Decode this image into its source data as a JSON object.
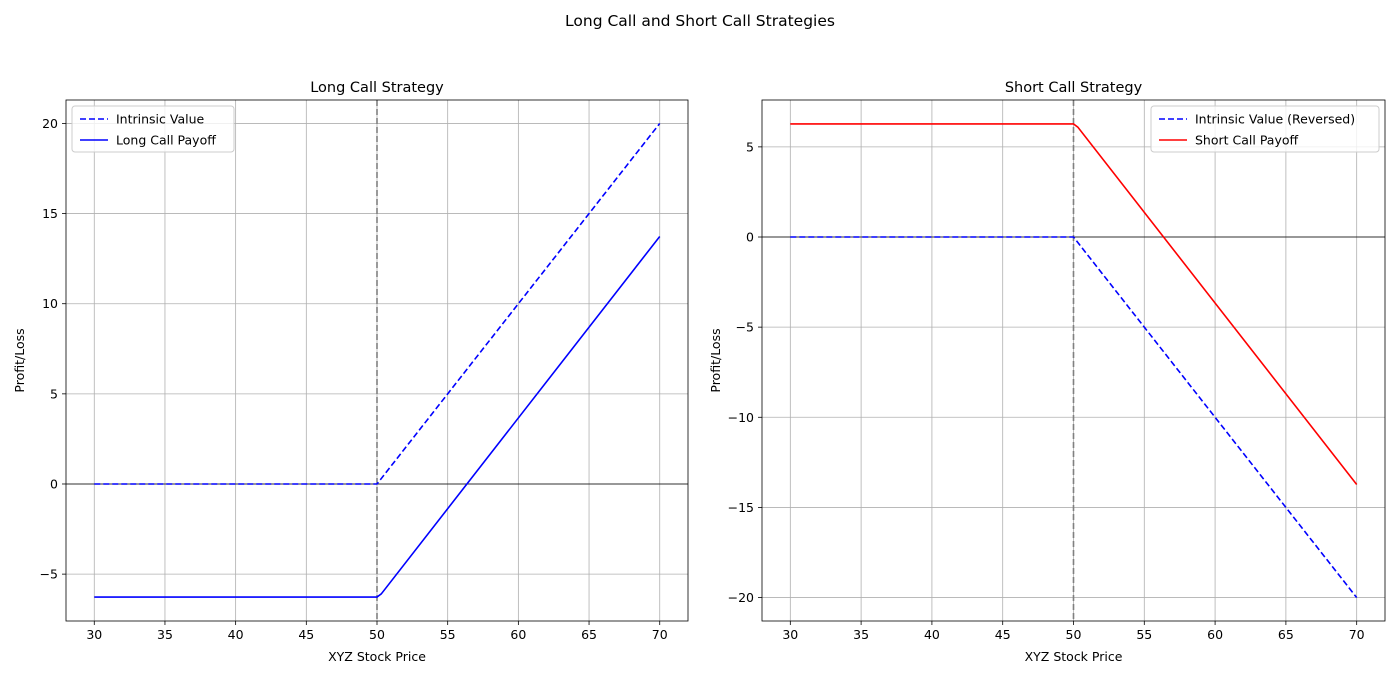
{
  "figure": {
    "suptitle": "Long Call and Short Call Strategies"
  },
  "chart_data": [
    {
      "type": "line",
      "title": "Long Call Strategy",
      "xlabel": "XYZ Stock Price",
      "ylabel": "Profit/Loss",
      "xlim": [
        28,
        72
      ],
      "ylim": [
        -7.6,
        21.3
      ],
      "xticks": [
        30,
        35,
        40,
        45,
        50,
        55,
        60,
        65,
        70
      ],
      "yticks": [
        -5,
        0,
        5,
        10,
        15,
        20
      ],
      "grid": true,
      "legend_position": "top-left",
      "strike_line": 50,
      "zero_line": 0,
      "series": [
        {
          "name": "Intrinsic Value",
          "color": "#0000ff",
          "style": "dashed",
          "x": [
            30,
            50,
            70
          ],
          "y": [
            0,
            0,
            20
          ]
        },
        {
          "name": "Long Call Payoff",
          "color": "#0000ff",
          "style": "solid",
          "x": [
            30,
            50,
            50.3,
            70
          ],
          "y": [
            -6.27,
            -6.27,
            -6.1,
            13.73
          ]
        }
      ]
    },
    {
      "type": "line",
      "title": "Short Call Strategy",
      "xlabel": "XYZ Stock Price",
      "ylabel": "Profit/Loss",
      "xlim": [
        28,
        72
      ],
      "ylim": [
        -21.3,
        7.6
      ],
      "xticks": [
        30,
        35,
        40,
        45,
        50,
        55,
        60,
        65,
        70
      ],
      "yticks": [
        -20,
        -15,
        -10,
        -5,
        0,
        5
      ],
      "grid": true,
      "legend_position": "top-right",
      "strike_line": 50,
      "zero_line": 0,
      "series": [
        {
          "name": "Intrinsic Value (Reversed)",
          "color": "#0000ff",
          "style": "dashed",
          "x": [
            30,
            50,
            70
          ],
          "y": [
            0,
            0,
            -20
          ]
        },
        {
          "name": "Short Call Payoff",
          "color": "#ff0000",
          "style": "solid",
          "x": [
            30,
            50,
            50.3,
            70
          ],
          "y": [
            6.27,
            6.27,
            6.1,
            -13.73
          ]
        }
      ]
    }
  ]
}
